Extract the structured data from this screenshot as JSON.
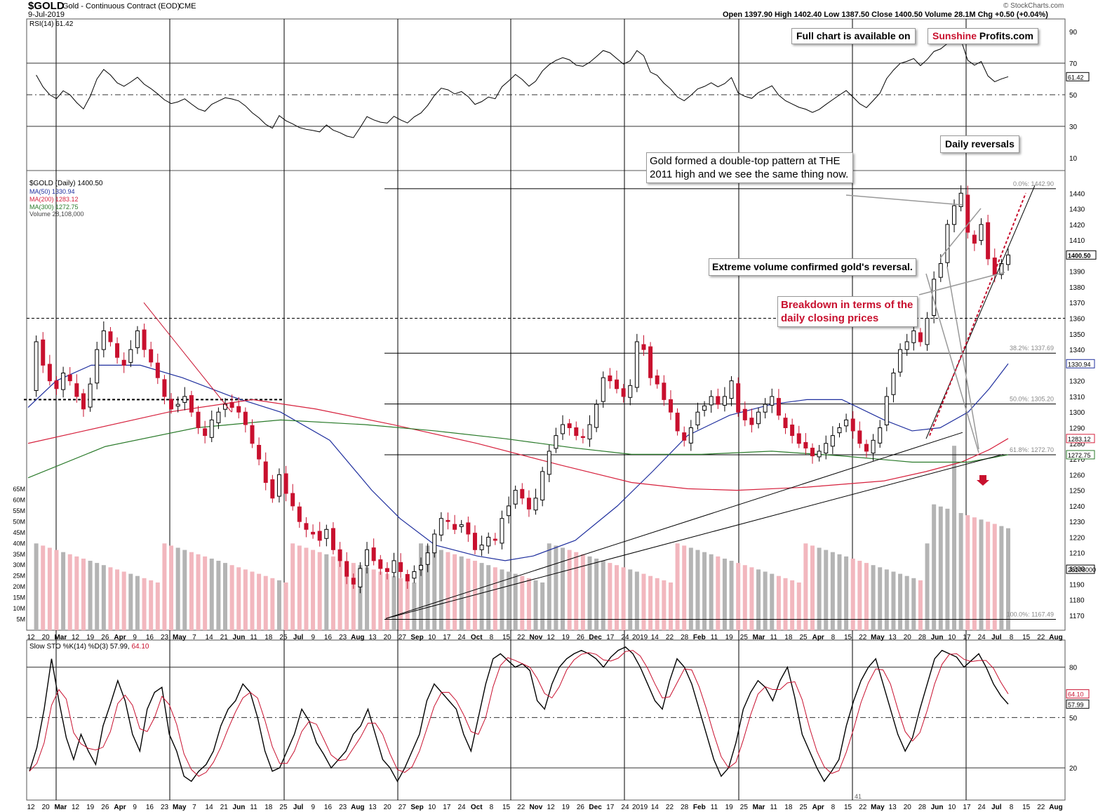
{
  "header": {
    "symbol": "$GOLD",
    "name": "Gold - Continuous Contract (EOD)",
    "exchange": "CME",
    "date": "9-Jul-2019",
    "ohlc": "Open 1397.90  High 1402.40  Low 1387.50  Close 1400.50  Volume 28.1M  Chg +0.50 (+0.04%)",
    "copyright": "© StockCharts.com"
  },
  "banner": {
    "prefix": "Full chart is available on",
    "brand_red": "Sunshine",
    "brand_black": "Profits.com"
  },
  "annotations": {
    "double_top": "Gold formed a double-top pattern at THE 2011 high and we see the same thing now.",
    "daily_reversals": "Daily reversals",
    "extreme_volume": "Extreme volume confirmed gold's reversal.",
    "breakdown": "Breakdown in terms of the daily closing prices"
  },
  "legend": {
    "rsi": "RSI(14) 61.42",
    "price": "$GOLD (Daily) 1400.50",
    "ma50": "MA(50) 1330.94",
    "ma200": "MA(200) 1283.12",
    "ma300": "MA(300) 1272.75",
    "volume": "Volume 28,108,000",
    "sto_prefix": "Slow STO %K(14) %D(3) 57.99,",
    "sto_d": "64.10"
  },
  "colors": {
    "up": "#000000",
    "down": "#c8102e",
    "ma50": "#1f2f9e",
    "ma200": "#d6213d",
    "ma300": "#2a7a2a",
    "rsi_overbought": "#3e7a3e",
    "rsi_oversold": "#8b4a4a"
  },
  "chart_data": [
    {
      "type": "line",
      "title": "RSI(14)",
      "y_ticks": [
        10,
        30,
        50,
        70,
        90
      ],
      "current_value": 61.42,
      "current_label": "61.42",
      "levels": [
        30,
        50,
        70
      ]
    },
    {
      "type": "candlestick",
      "title": "$GOLD (Daily)",
      "ylim": [
        1165,
        1450
      ],
      "y_ticks": [
        1170,
        1180,
        1190,
        1200,
        1210,
        1220,
        1230,
        1240,
        1250,
        1260,
        1270,
        1280,
        1290,
        1300,
        1310,
        1320,
        1330,
        1340,
        1350,
        1360,
        1370,
        1380,
        1390,
        1400,
        1410,
        1420,
        1430,
        1440
      ],
      "last_close": 1400.5,
      "last_close_label": "1400.50",
      "fib_levels": [
        {
          "label": "0.0%: 1442.90",
          "value": 1442.9
        },
        {
          "label": "38.2%: 1337.69",
          "value": 1337.69
        },
        {
          "label": "50.0%: 1305.20",
          "value": 1305.2
        },
        {
          "label": "61.8%: 1272.70",
          "value": 1272.7
        },
        {
          "label": "100.0%: 1167.49",
          "value": 1167.49
        }
      ],
      "resistance_level": 1360,
      "ma_current": [
        {
          "name": "MA(50)",
          "value": 1330.94,
          "label": "1330.94"
        },
        {
          "name": "MA(200)",
          "value": 1283.12,
          "label": "1283.12"
        },
        {
          "name": "MA(300)",
          "value": 1272.75,
          "label": "1272.75"
        }
      ],
      "closes_approx": [
        1312,
        1345,
        1330,
        1320,
        1315,
        1325,
        1320,
        1310,
        1302,
        1318,
        1340,
        1352,
        1345,
        1335,
        1330,
        1340,
        1352,
        1340,
        1332,
        1322,
        1310,
        1302,
        1305,
        1310,
        1300,
        1290,
        1285,
        1295,
        1300,
        1305,
        1303,
        1300,
        1292,
        1280,
        1270,
        1255,
        1245,
        1260,
        1248,
        1240,
        1230,
        1225,
        1222,
        1218,
        1225,
        1212,
        1205,
        1195,
        1190,
        1200,
        1212,
        1205,
        1200,
        1198,
        1205,
        1198,
        1192,
        1198,
        1202,
        1210,
        1222,
        1232,
        1230,
        1225,
        1228,
        1222,
        1212,
        1215,
        1220,
        1218,
        1232,
        1240,
        1250,
        1245,
        1238,
        1245,
        1262,
        1275,
        1285,
        1292,
        1290,
        1285,
        1284,
        1292,
        1305,
        1322,
        1320,
        1315,
        1310,
        1317,
        1345,
        1340,
        1322,
        1318,
        1308,
        1300,
        1288,
        1282,
        1290,
        1300,
        1304,
        1310,
        1305,
        1310,
        1320,
        1300,
        1295,
        1292,
        1300,
        1305,
        1310,
        1298,
        1290,
        1285,
        1280,
        1277,
        1272,
        1275,
        1280,
        1285,
        1290,
        1295,
        1288,
        1280,
        1275,
        1282,
        1290,
        1310,
        1325,
        1340,
        1345,
        1352,
        1345,
        1360,
        1385,
        1395,
        1420,
        1432,
        1440,
        1415,
        1408,
        1420,
        1398,
        1388,
        1395,
        1400.5
      ],
      "volume_y_ticks": [
        "5M",
        "10M",
        "15M",
        "20M",
        "25M",
        "30M",
        "35M",
        "40M",
        "45M",
        "50M",
        "55M",
        "60M",
        "65M"
      ],
      "volume_current_label": "28108000"
    },
    {
      "type": "line",
      "title": "Slow STO %K(14) %D(3)",
      "y_ticks": [
        20,
        50,
        80
      ],
      "k_current": 57.99,
      "d_current": 64.1,
      "k_label": "57.99",
      "d_label": "64.10",
      "k_values": [
        18,
        32,
        55,
        85,
        60,
        38,
        25,
        40,
        30,
        22,
        45,
        58,
        72,
        60,
        40,
        30,
        55,
        65,
        68,
        40,
        30,
        15,
        12,
        18,
        22,
        30,
        45,
        55,
        60,
        70,
        65,
        50,
        30,
        18,
        20,
        30,
        40,
        55,
        48,
        35,
        28,
        20,
        25,
        30,
        40,
        45,
        55,
        40,
        25,
        20,
        12,
        20,
        30,
        40,
        60,
        70,
        65,
        60,
        55,
        40,
        30,
        50,
        70,
        85,
        88,
        84,
        80,
        82,
        78,
        60,
        55,
        70,
        80,
        85,
        88,
        90,
        88,
        85,
        80,
        86,
        90,
        92,
        88,
        80,
        70,
        60,
        55,
        72,
        85,
        80,
        70,
        55,
        40,
        25,
        15,
        20,
        35,
        55,
        65,
        72,
        68,
        60,
        72,
        80,
        62,
        40,
        30,
        20,
        12,
        18,
        25,
        45,
        60,
        72,
        80,
        85,
        70,
        55,
        40,
        30,
        38,
        55,
        70,
        85,
        90,
        88,
        86,
        80,
        84,
        88,
        80,
        70,
        63,
        58
      ]
    }
  ],
  "x_axis_top": [
    "12",
    "20",
    "Mar",
    "12",
    "19",
    "26",
    "Apr",
    "9",
    "16",
    "23",
    "May",
    "7",
    "14",
    "21",
    "Jun",
    "11",
    "18",
    "25",
    "Jul",
    "9",
    "16",
    "23",
    "Aug",
    "13",
    "20",
    "27",
    "Sep",
    "10",
    "17",
    "24",
    "Oct",
    "8",
    "15",
    "22",
    "Nov",
    "12",
    "19",
    "26",
    "Dec",
    "17",
    "24",
    "2019",
    "14",
    "22",
    "28",
    "Feb",
    "11",
    "19",
    "25",
    "Mar",
    "11",
    "18",
    "25",
    "Apr",
    "8",
    "15",
    "22",
    "May",
    "13",
    "20",
    "28",
    "Jun",
    "10",
    "17",
    "24",
    "Jul",
    "8",
    "15",
    "22",
    "Aug"
  ],
  "x_axis_bottom": [
    "12",
    "20",
    "Mar",
    "12",
    "19",
    "26",
    "Apr",
    "9",
    "16",
    "23",
    "May",
    "7",
    "14",
    "21",
    "Jun",
    "11",
    "18",
    "25",
    "Jul",
    "9",
    "16",
    "23",
    "Aug",
    "13",
    "20",
    "27",
    "Sep",
    "10",
    "17",
    "24",
    "Oct",
    "8",
    "15",
    "22",
    "Nov",
    "12",
    "19",
    "26",
    "Dec",
    "17",
    "24",
    "2019",
    "14",
    "22",
    "28",
    "Feb",
    "11",
    "19",
    "25",
    "Mar",
    "11",
    "18",
    "25",
    "Apr",
    "8",
    "15",
    "22",
    "May",
    "13",
    "20",
    "28",
    "Jun",
    "10",
    "17",
    "24",
    "Jul",
    "8",
    "15",
    "22",
    "Aug"
  ],
  "bottom_marker": "41"
}
